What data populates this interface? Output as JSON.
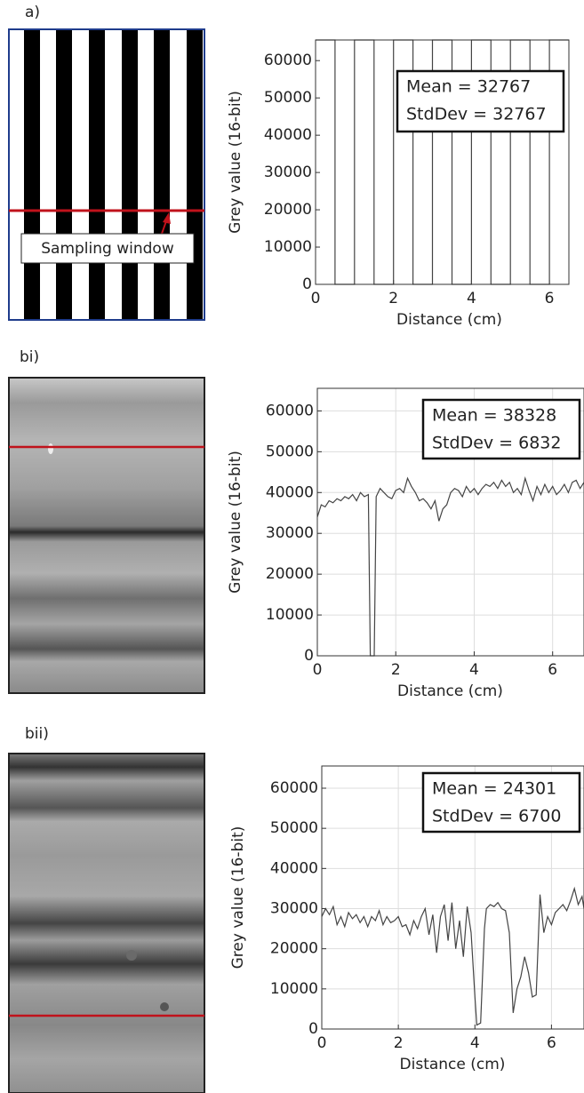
{
  "panel_labels": [
    "a)",
    "bi)",
    "bii)"
  ],
  "image_annotation": "Sampling window",
  "chart_data": [
    {
      "type": "line",
      "ylabel": "Grey value (16-bit)",
      "xlabel": "Distance (cm)",
      "annotation": [
        "Mean = 32767",
        "StdDev = 32767"
      ],
      "x": [
        0,
        0.5,
        0.5,
        1,
        1,
        1.5,
        1.5,
        2,
        2,
        2.5,
        2.5,
        3,
        3,
        3.5,
        3.5,
        4,
        4,
        4.5,
        4.5,
        5,
        5,
        5.5,
        5.5,
        6,
        6,
        6.5
      ],
      "values": [
        65535,
        65535,
        0,
        0,
        65535,
        65535,
        0,
        0,
        65535,
        65535,
        0,
        0,
        65535,
        65535,
        0,
        0,
        65535,
        65535,
        0,
        0,
        65535,
        65535,
        0,
        0,
        65535,
        65535
      ],
      "color": "#444444",
      "xlim": [
        0,
        6.5
      ],
      "ylim": [
        0,
        65535
      ],
      "xticks": [
        0,
        2,
        4,
        6
      ],
      "yticks": [
        0,
        10000,
        20000,
        30000,
        40000,
        50000,
        60000
      ],
      "grid": false
    },
    {
      "type": "line",
      "ylabel": "Grey value (16-bit)",
      "xlabel": "Distance (cm)",
      "annotation": [
        "Mean = 38328",
        "StdDev = 6832"
      ],
      "x": [
        0,
        0.1,
        0.2,
        0.3,
        0.4,
        0.5,
        0.6,
        0.7,
        0.8,
        0.9,
        1.0,
        1.1,
        1.2,
        1.3,
        1.35,
        1.45,
        1.5,
        1.6,
        1.7,
        1.8,
        1.9,
        2.0,
        2.1,
        2.2,
        2.3,
        2.4,
        2.5,
        2.6,
        2.7,
        2.8,
        2.9,
        3.0,
        3.1,
        3.2,
        3.3,
        3.4,
        3.5,
        3.6,
        3.7,
        3.8,
        3.9,
        4.0,
        4.1,
        4.2,
        4.3,
        4.4,
        4.5,
        4.6,
        4.7,
        4.8,
        4.9,
        5.0,
        5.1,
        5.2,
        5.3,
        5.4,
        5.5,
        5.6,
        5.7,
        5.8,
        5.9,
        6.0,
        6.1,
        6.2,
        6.3,
        6.4,
        6.5,
        6.6,
        6.7,
        6.8
      ],
      "values": [
        34000,
        37000,
        36500,
        38000,
        37500,
        38500,
        38000,
        39000,
        38500,
        39500,
        38000,
        40000,
        39000,
        39500,
        0,
        0,
        39000,
        41000,
        40000,
        39000,
        38500,
        40500,
        41000,
        40000,
        43500,
        41500,
        40000,
        38000,
        38500,
        37500,
        36000,
        38000,
        33000,
        36000,
        37000,
        40000,
        41000,
        40500,
        39000,
        41500,
        40000,
        41000,
        39500,
        41000,
        42000,
        41500,
        42500,
        41000,
        43000,
        41500,
        42500,
        40000,
        41000,
        39500,
        43500,
        40500,
        38000,
        41500,
        39500,
        42000,
        40000,
        41500,
        39500,
        40500,
        42000,
        40000,
        42500,
        43000,
        41000,
        42500
      ],
      "color": "#444444",
      "xlim": [
        0,
        6.8
      ],
      "ylim": [
        0,
        65535
      ],
      "xticks": [
        0,
        2,
        4,
        6
      ],
      "yticks": [
        0,
        10000,
        20000,
        30000,
        40000,
        50000,
        60000
      ],
      "grid": true
    },
    {
      "type": "line",
      "ylabel": "Grey value (16-bit)",
      "xlabel": "Distance (cm)",
      "annotation": [
        "Mean = 24301",
        "StdDev = 6700"
      ],
      "x": [
        0,
        0.1,
        0.2,
        0.3,
        0.4,
        0.5,
        0.6,
        0.7,
        0.8,
        0.9,
        1.0,
        1.1,
        1.2,
        1.3,
        1.4,
        1.5,
        1.6,
        1.7,
        1.8,
        1.9,
        2.0,
        2.1,
        2.2,
        2.3,
        2.4,
        2.5,
        2.6,
        2.7,
        2.8,
        2.9,
        3.0,
        3.1,
        3.2,
        3.3,
        3.4,
        3.5,
        3.6,
        3.7,
        3.8,
        3.9,
        4.0,
        4.05,
        4.15,
        4.25,
        4.3,
        4.4,
        4.5,
        4.6,
        4.7,
        4.8,
        4.9,
        5.0,
        5.1,
        5.2,
        5.3,
        5.4,
        5.5,
        5.6,
        5.7,
        5.8,
        5.9,
        6.0,
        6.1,
        6.2,
        6.3,
        6.4,
        6.5,
        6.6,
        6.7,
        6.8,
        6.85
      ],
      "values": [
        28000,
        30000,
        28500,
        30500,
        26000,
        28000,
        25500,
        29000,
        27500,
        28500,
        26500,
        28000,
        25500,
        28000,
        27000,
        29500,
        26000,
        28000,
        26500,
        27000,
        28000,
        25500,
        26000,
        23500,
        27000,
        25000,
        28000,
        30000,
        23500,
        28500,
        19000,
        28000,
        31000,
        22000,
        31500,
        20000,
        27000,
        18000,
        30500,
        24000,
        8000,
        1000,
        1500,
        25000,
        30000,
        31000,
        30500,
        31500,
        30000,
        29500,
        24000,
        4000,
        10000,
        13000,
        18000,
        14000,
        8000,
        8500,
        33500,
        24000,
        28000,
        26000,
        29000,
        30000,
        31000,
        29500,
        32000,
        35000,
        31000,
        33000,
        30000
      ],
      "color": "#444444",
      "xlim": [
        0,
        6.85
      ],
      "ylim": [
        0,
        65535
      ],
      "xticks": [
        0,
        2,
        4,
        6
      ],
      "yticks": [
        0,
        10000,
        20000,
        30000,
        40000,
        50000,
        60000
      ],
      "grid": true
    }
  ]
}
